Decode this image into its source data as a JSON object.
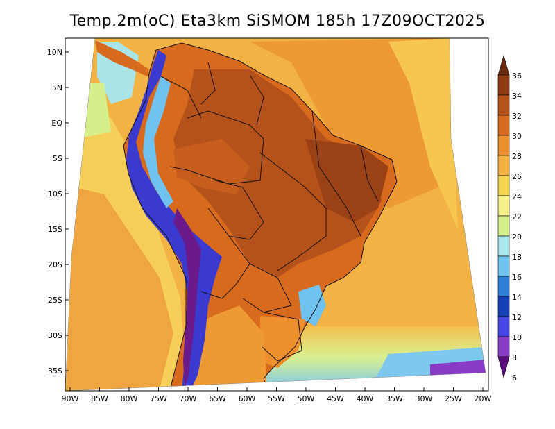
{
  "title": "Temp.2m(oC) Eta3km SiSMOM 185h 17Z09OCT2025",
  "lat_labels": [
    "10N",
    "5N",
    "EQ",
    "5S",
    "10S",
    "15S",
    "20S",
    "25S",
    "30S",
    "35S"
  ],
  "lon_labels": [
    "90W",
    "85W",
    "80W",
    "75W",
    "70W",
    "65W",
    "60W",
    "55W",
    "50W",
    "45W",
    "40W",
    "35W",
    "30W",
    "25W",
    "20W"
  ],
  "colorbar": {
    "labels": [
      "36",
      "34",
      "32",
      "30",
      "28",
      "26",
      "24",
      "22",
      "20",
      "18",
      "16",
      "14",
      "12",
      "10",
      "8",
      "6"
    ],
    "colors": [
      "#6b2a10",
      "#8e3c12",
      "#b5511a",
      "#d86a1e",
      "#ee8f2e",
      "#f4b140",
      "#f6d34e",
      "#f7f08a",
      "#d5f08a",
      "#a6e6ec",
      "#70c2f0",
      "#2d7fd8",
      "#1440b8",
      "#4646e6",
      "#8a3cc8",
      "#5a0a7a"
    ]
  },
  "colors": {
    "ocean": "#f2b244",
    "land_hot": "#c8561c",
    "land_warm": "#e07826",
    "andes_cold": "#3b3ad0",
    "andes_peak": "#6a1a8a",
    "pacific_cool": "#a8e4e8",
    "south_cool": "#7ec8f0"
  }
}
